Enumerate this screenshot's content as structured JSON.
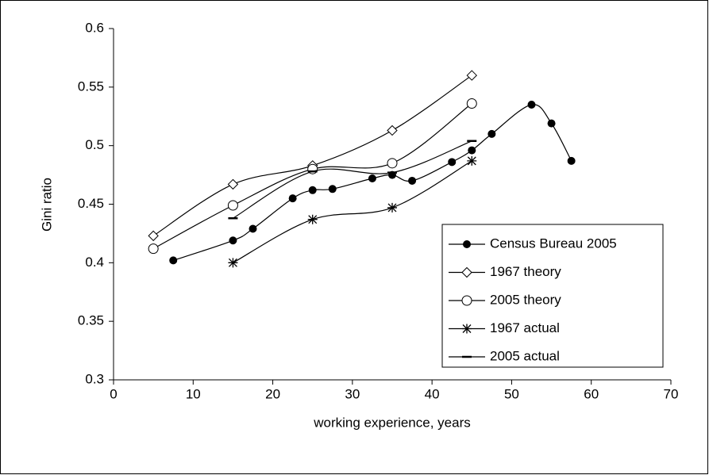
{
  "chart_data": {
    "type": "line",
    "x_label": "working experience, years",
    "y_label": "Gini ratio",
    "xlim": [
      0,
      70
    ],
    "xticks": [
      0,
      10,
      20,
      30,
      40,
      50,
      60,
      70
    ],
    "ylim": [
      0.3,
      0.6
    ],
    "yticks": [
      0.3,
      0.35,
      0.4,
      0.45,
      0.5,
      0.55,
      0.6
    ],
    "legend": "lower-right",
    "series": [
      {
        "name": "Census Bureau 2005",
        "color": "#000000",
        "marker": "filled-circle",
        "x": [
          7.5,
          15,
          17.5,
          22.5,
          25,
          27.5,
          32.5,
          35,
          37.5,
          42.5,
          45,
          47.5,
          52.5,
          55,
          57.5
        ],
        "values": [
          0.402,
          0.419,
          0.429,
          0.455,
          0.462,
          0.463,
          0.472,
          0.475,
          0.47,
          0.486,
          0.496,
          0.51,
          0.535,
          0.519,
          0.487
        ]
      },
      {
        "name": "1967 theory",
        "color": "#000000",
        "marker": "diamond",
        "x": [
          5,
          15,
          25,
          35,
          45
        ],
        "values": [
          0.423,
          0.467,
          0.483,
          0.513,
          0.56
        ]
      },
      {
        "name": "2005 theory",
        "color": "#000000",
        "marker": "circle",
        "x": [
          5,
          15,
          25,
          35,
          45
        ],
        "values": [
          0.412,
          0.449,
          0.48,
          0.485,
          0.536
        ]
      },
      {
        "name": "1967 actual",
        "color": "#000000",
        "marker": "asterisk",
        "x": [
          15,
          25,
          35,
          45
        ],
        "values": [
          0.4,
          0.437,
          0.447,
          0.487
        ]
      },
      {
        "name": "2005 actual",
        "color": "#000000",
        "marker": "dash",
        "x": [
          15,
          25,
          35,
          45
        ],
        "values": [
          0.438,
          0.478,
          0.477,
          0.504
        ]
      }
    ]
  }
}
